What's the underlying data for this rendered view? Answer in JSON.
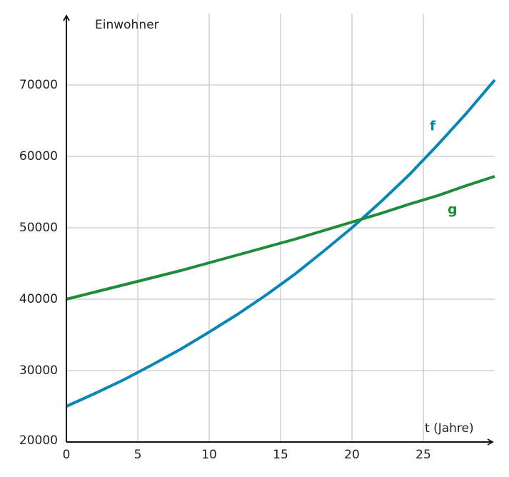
{
  "chart_data": {
    "type": "line",
    "y_label": "Einwohner",
    "x_label": "t (Jahre)",
    "x": [
      0,
      2,
      4,
      6,
      8,
      10,
      12,
      14,
      16,
      18,
      20,
      22,
      24,
      26,
      28,
      30
    ],
    "series": [
      {
        "name": "f",
        "color": "#0a86b4",
        "values": [
          25000,
          26800,
          28700,
          30800,
          33000,
          35400,
          37900,
          40600,
          43500,
          46700,
          50000,
          53600,
          57400,
          61600,
          66000,
          70700
        ]
      },
      {
        "name": "g",
        "color": "#1e8c3a",
        "values": [
          40000,
          41000,
          42000,
          43000,
          44000,
          45100,
          46200,
          47300,
          48400,
          49600,
          50800,
          52000,
          53300,
          54500,
          55900,
          57200
        ]
      }
    ],
    "xlim": [
      0,
      30
    ],
    "ylim": [
      20000,
      80000
    ],
    "xticks": [
      0,
      5,
      10,
      15,
      20,
      25
    ],
    "yticks": [
      20000,
      30000,
      40000,
      50000,
      60000,
      70000
    ],
    "grid": true
  }
}
